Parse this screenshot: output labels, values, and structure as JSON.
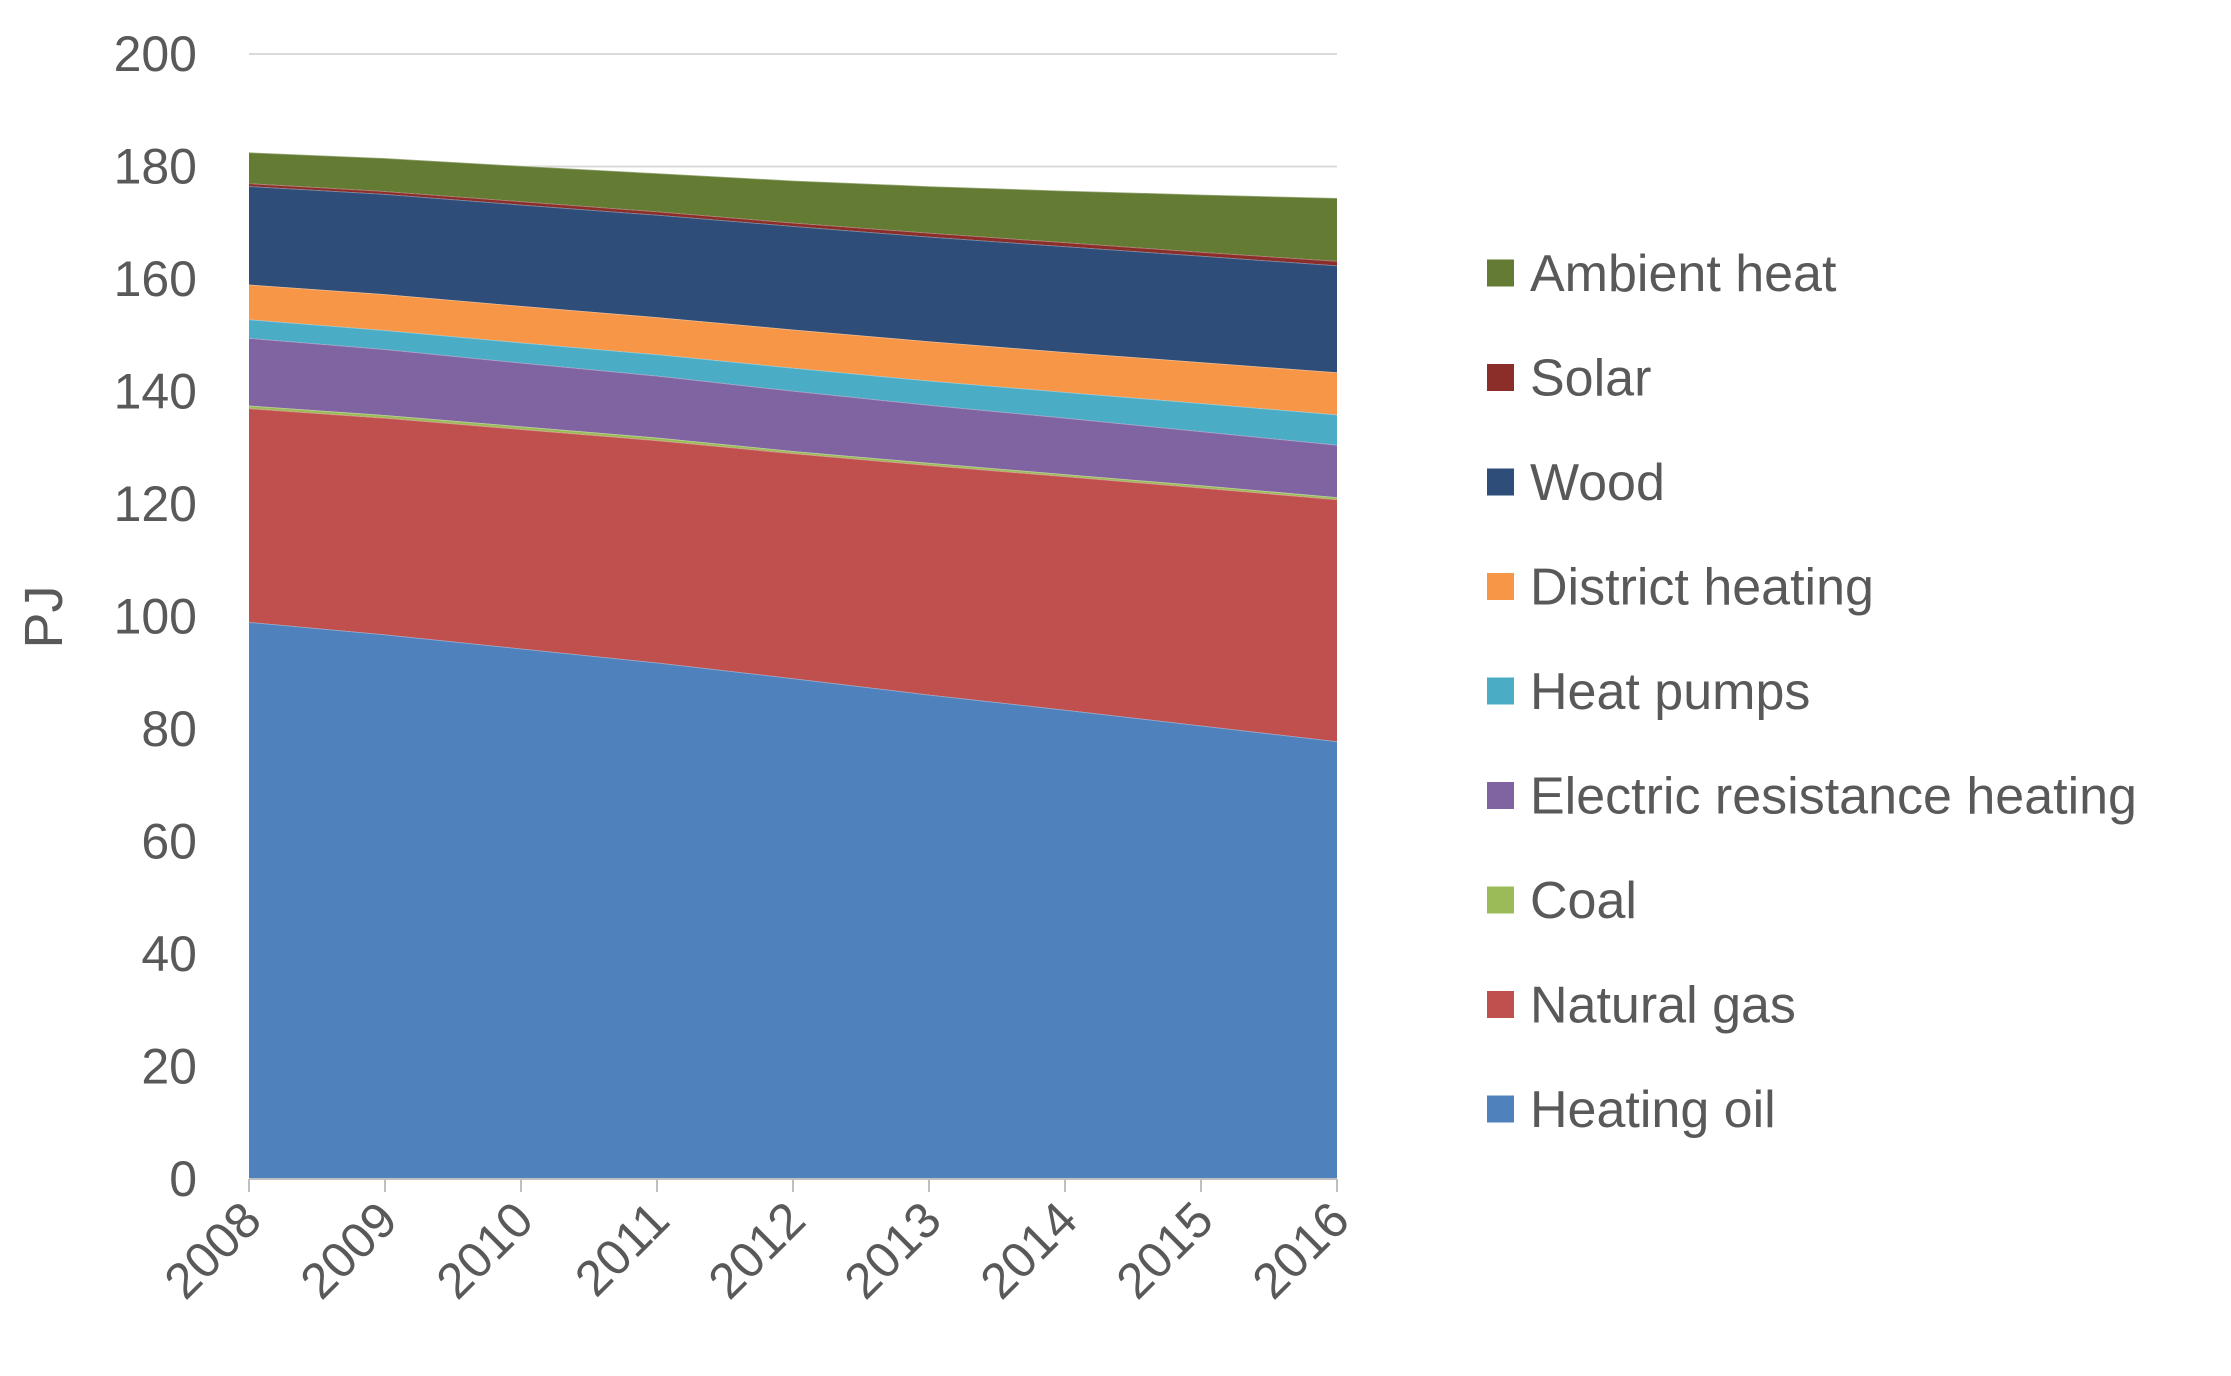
{
  "chart_data": {
    "type": "area",
    "stacked": true,
    "title": "",
    "xlabel": "",
    "ylabel": "PJ",
    "x": [
      "2008",
      "2009",
      "2010",
      "2011",
      "2012",
      "2013",
      "2014",
      "2015",
      "2016"
    ],
    "ylim": [
      0,
      200
    ],
    "yticks": [
      "0",
      "20",
      "40",
      "60",
      "80",
      "100",
      "120",
      "140",
      "160",
      "180",
      "200"
    ],
    "grid": "horizontal",
    "legend_position": "right",
    "series": [
      {
        "name": "Heating oil",
        "color": "#4F81BD",
        "values": [
          99,
          96.8,
          94.3,
          91.8,
          89,
          86.1,
          83.4,
          80.6,
          77.8
        ]
      },
      {
        "name": "Natural gas",
        "color": "#C0504D",
        "values": [
          38,
          38.5,
          39,
          39.5,
          40,
          40.8,
          41.5,
          42.3,
          43
        ]
      },
      {
        "name": "Coal",
        "color": "#9BBB59",
        "values": [
          0.5,
          0.5,
          0.5,
          0.5,
          0.4,
          0.4,
          0.4,
          0.4,
          0.4
        ]
      },
      {
        "name": "Electric resistance heating",
        "color": "#8064A2",
        "values": [
          12,
          11.7,
          11.3,
          11,
          10.7,
          10.3,
          10,
          9.6,
          9.3
        ]
      },
      {
        "name": "Heat pumps",
        "color": "#4BACC6",
        "values": [
          3.3,
          3.4,
          3.6,
          3.8,
          4.1,
          4.3,
          4.6,
          5,
          5.4
        ]
      },
      {
        "name": "District heating",
        "color": "#F79646",
        "values": [
          6.2,
          6.4,
          6.5,
          6.6,
          6.8,
          7,
          7.1,
          7.3,
          7.5
        ]
      },
      {
        "name": "Wood",
        "color": "#2E4D78",
        "values": [
          17.5,
          17.8,
          18,
          18.2,
          18.4,
          18.6,
          18.8,
          18.9,
          19
        ]
      },
      {
        "name": "Solar",
        "color": "#8B2E2A",
        "values": [
          0.5,
          0.5,
          0.6,
          0.6,
          0.6,
          0.7,
          0.7,
          0.7,
          0.8
        ]
      },
      {
        "name": "Ambient heat",
        "color": "#637B32",
        "values": [
          5.5,
          5.9,
          6.3,
          6.8,
          7.5,
          8.3,
          9.2,
          10.2,
          11.2
        ]
      }
    ]
  }
}
